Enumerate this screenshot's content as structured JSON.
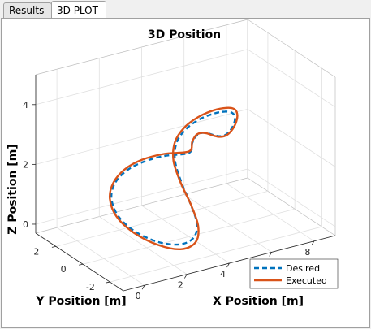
{
  "tabs": [
    {
      "label": "Results",
      "active": false
    },
    {
      "label": "3D PLOT",
      "active": true
    }
  ],
  "chart_data": {
    "type": "line3d",
    "title": "3D Position",
    "xlabel": "X Position [m]",
    "ylabel": "Y Position [m]",
    "zlabel": "Z Position [m]",
    "xlim": [
      -1,
      9
    ],
    "ylim": [
      -3,
      3.5
    ],
    "zlim": [
      -0.3,
      5
    ],
    "xticks": [
      0,
      2,
      4,
      6,
      8
    ],
    "yticks": [
      -2,
      0,
      2
    ],
    "zticks": [
      0,
      2,
      4
    ],
    "grid": true,
    "legend_position": "bottom-right",
    "series": [
      {
        "name": "Desired",
        "color": "#0072BD",
        "style": "dashed",
        "points": [
          [
            4.0,
            0.0,
            2.5
          ],
          [
            4.68,
            0.82,
            2.46
          ],
          [
            5.31,
            1.53,
            2.36
          ],
          [
            5.86,
            2.02,
            2.22
          ],
          [
            6.26,
            2.25,
            2.08
          ],
          [
            6.5,
            2.17,
            2.0
          ],
          [
            6.56,
            1.8,
            2.05
          ],
          [
            6.43,
            1.15,
            2.3
          ],
          [
            6.16,
            0.33,
            2.75
          ],
          [
            5.77,
            -0.55,
            3.3
          ],
          [
            5.3,
            -1.37,
            3.85
          ],
          [
            4.8,
            -1.95,
            4.27
          ],
          [
            4.3,
            -2.2,
            4.48
          ],
          [
            3.84,
            -2.06,
            4.45
          ],
          [
            3.5,
            -1.55,
            4.17
          ],
          [
            3.35,
            -0.8,
            3.65
          ],
          [
            3.42,
            0.0,
            2.95
          ],
          [
            3.6,
            0.4,
            2.2
          ],
          [
            3.78,
            0.22,
            1.5
          ],
          [
            3.82,
            -0.4,
            0.95
          ],
          [
            3.55,
            -1.3,
            0.6
          ],
          [
            2.95,
            -2.0,
            0.45
          ],
          [
            2.15,
            -2.25,
            0.45
          ],
          [
            1.3,
            -1.95,
            0.6
          ],
          [
            0.68,
            -1.2,
            0.85
          ],
          [
            0.48,
            -0.3,
            1.12
          ],
          [
            0.7,
            0.55,
            1.4
          ],
          [
            1.22,
            1.15,
            1.63
          ],
          [
            1.9,
            1.4,
            1.85
          ],
          [
            2.6,
            1.3,
            2.05
          ],
          [
            3.3,
            0.75,
            2.3
          ],
          [
            4.0,
            0.0,
            2.5
          ]
        ]
      },
      {
        "name": "Executed",
        "color": "#D95319",
        "style": "solid",
        "points": [
          [
            4.0,
            0.0,
            2.55
          ],
          [
            4.7,
            0.85,
            2.5
          ],
          [
            5.35,
            1.58,
            2.38
          ],
          [
            5.92,
            2.08,
            2.2
          ],
          [
            6.32,
            2.3,
            2.04
          ],
          [
            6.56,
            2.2,
            1.95
          ],
          [
            6.62,
            1.8,
            2.02
          ],
          [
            6.5,
            1.12,
            2.3
          ],
          [
            6.24,
            0.28,
            2.8
          ],
          [
            5.85,
            -0.62,
            3.4
          ],
          [
            5.36,
            -1.45,
            3.98
          ],
          [
            4.84,
            -2.05,
            4.42
          ],
          [
            4.3,
            -2.32,
            4.64
          ],
          [
            3.8,
            -2.15,
            4.6
          ],
          [
            3.42,
            -1.6,
            4.28
          ],
          [
            3.25,
            -0.82,
            3.72
          ],
          [
            3.34,
            0.0,
            2.98
          ],
          [
            3.56,
            0.45,
            2.18
          ],
          [
            3.8,
            0.28,
            1.44
          ],
          [
            3.86,
            -0.38,
            0.9
          ],
          [
            3.6,
            -1.32,
            0.52
          ],
          [
            3.0,
            -2.08,
            0.32
          ],
          [
            2.15,
            -2.35,
            0.32
          ],
          [
            1.28,
            -2.02,
            0.52
          ],
          [
            0.62,
            -1.24,
            0.82
          ],
          [
            0.4,
            -0.3,
            1.12
          ],
          [
            0.64,
            0.58,
            1.42
          ],
          [
            1.2,
            1.2,
            1.66
          ],
          [
            1.9,
            1.46,
            1.9
          ],
          [
            2.62,
            1.34,
            2.12
          ],
          [
            3.32,
            0.78,
            2.36
          ],
          [
            4.0,
            0.0,
            2.55
          ]
        ]
      }
    ]
  }
}
